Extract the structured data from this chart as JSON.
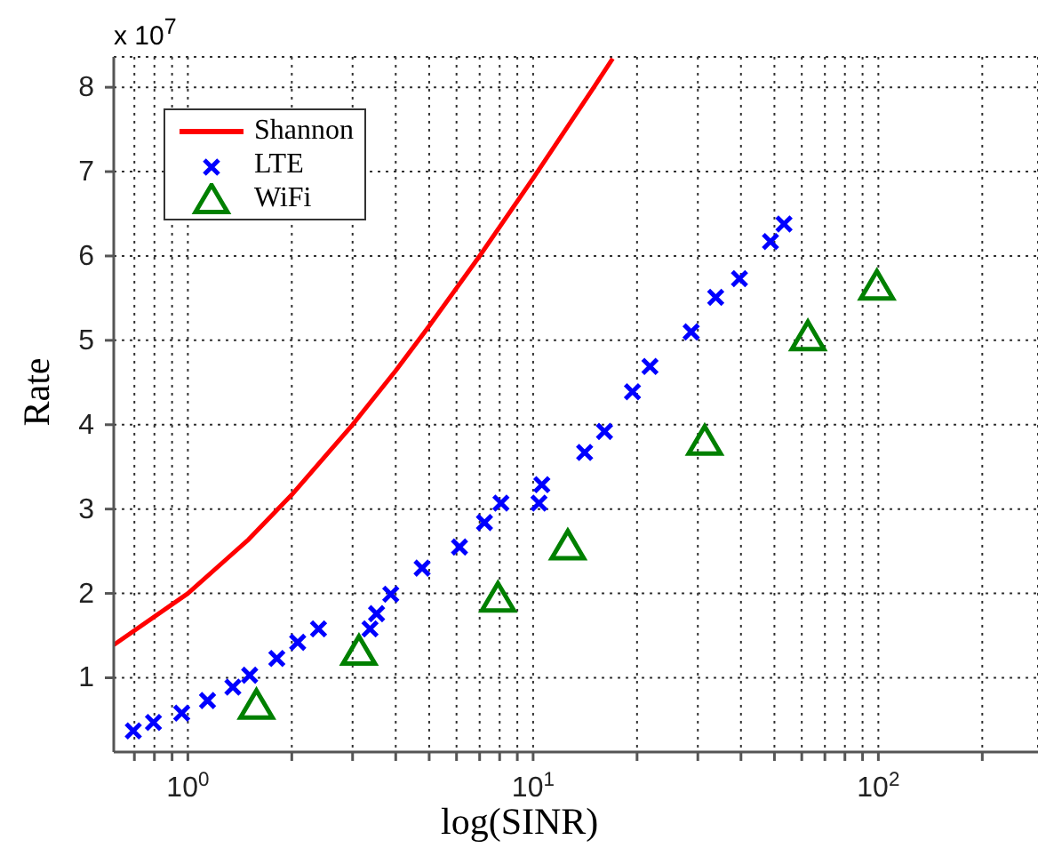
{
  "chart_data": {
    "type": "scatter",
    "xlabel": "log(SINR)",
    "ylabel": "Rate",
    "log": "x",
    "grid": true,
    "legend": "top left",
    "annotations": [
      "x 10$^{7}$"
    ],
    "xlim": [
      0.61,
      290
    ],
    "xticks": [
      {
        "value": 1,
        "label": "10$^{0}$"
      },
      {
        "value": 10,
        "label": "10$^{1}$"
      },
      {
        "value": 100,
        "label": "10$^{2}$"
      },
      {
        "value": 0.7,
        "label": null
      },
      {
        "value": 0.8,
        "label": null
      },
      {
        "value": 0.9,
        "label": null
      },
      {
        "value": 2,
        "label": null
      },
      {
        "value": 3,
        "label": null
      },
      {
        "value": 4,
        "label": null
      },
      {
        "value": 5,
        "label": null
      },
      {
        "value": 6,
        "label": null
      },
      {
        "value": 7,
        "label": null
      },
      {
        "value": 8,
        "label": null
      },
      {
        "value": 9,
        "label": null
      },
      {
        "value": 20,
        "label": null
      },
      {
        "value": 30,
        "label": null
      },
      {
        "value": 40,
        "label": null
      },
      {
        "value": 50,
        "label": null
      },
      {
        "value": 60,
        "label": null
      },
      {
        "value": 70,
        "label": null
      },
      {
        "value": 80,
        "label": null
      },
      {
        "value": 90,
        "label": null
      },
      {
        "value": 200,
        "label": null
      }
    ],
    "ylim": [
      0.12,
      8.36
    ],
    "yticks": [
      1,
      2,
      3,
      4,
      5,
      6,
      7,
      8
    ],
    "series": [
      {
        "name": "Shannon",
        "type": "line",
        "color": "#ff0000",
        "marker": "none",
        "line_style": "solid",
        "x": [
          0.61,
          1,
          1.5,
          2,
          3,
          4,
          5,
          7,
          10,
          15,
          17
        ],
        "values": [
          1.39,
          2.0,
          2.64,
          3.17,
          4.0,
          4.64,
          5.17,
          6.0,
          6.92,
          8.0,
          8.34
        ]
      },
      {
        "name": "LTE",
        "color": "#0000ff",
        "marker": "cross",
        "x": [
          0.695,
          0.795,
          0.96,
          1.14,
          1.35,
          1.51,
          1.81,
          2.08,
          2.39,
          3.37,
          3.52,
          3.87,
          4.77,
          6.12,
          7.23,
          8.07,
          10.4,
          10.6,
          14.1,
          16.1,
          19.4,
          21.8,
          28.7,
          33.8,
          39.6,
          48.7,
          53.3
        ],
        "values": [
          0.37,
          0.47,
          0.58,
          0.73,
          0.89,
          1.03,
          1.23,
          1.42,
          1.58,
          1.58,
          1.76,
          1.99,
          2.3,
          2.55,
          2.84,
          3.07,
          3.07,
          3.29,
          3.67,
          3.92,
          4.39,
          4.69,
          5.1,
          5.51,
          5.73,
          6.17,
          6.38
        ]
      },
      {
        "name": "WiFi",
        "color": "#008000",
        "marker": "triangle",
        "x": [
          1.58,
          3.13,
          7.91,
          12.6,
          31.4,
          62.5,
          99
        ],
        "values": [
          0.66,
          1.3,
          1.93,
          2.55,
          3.79,
          5.03,
          5.63
        ]
      }
    ]
  }
}
